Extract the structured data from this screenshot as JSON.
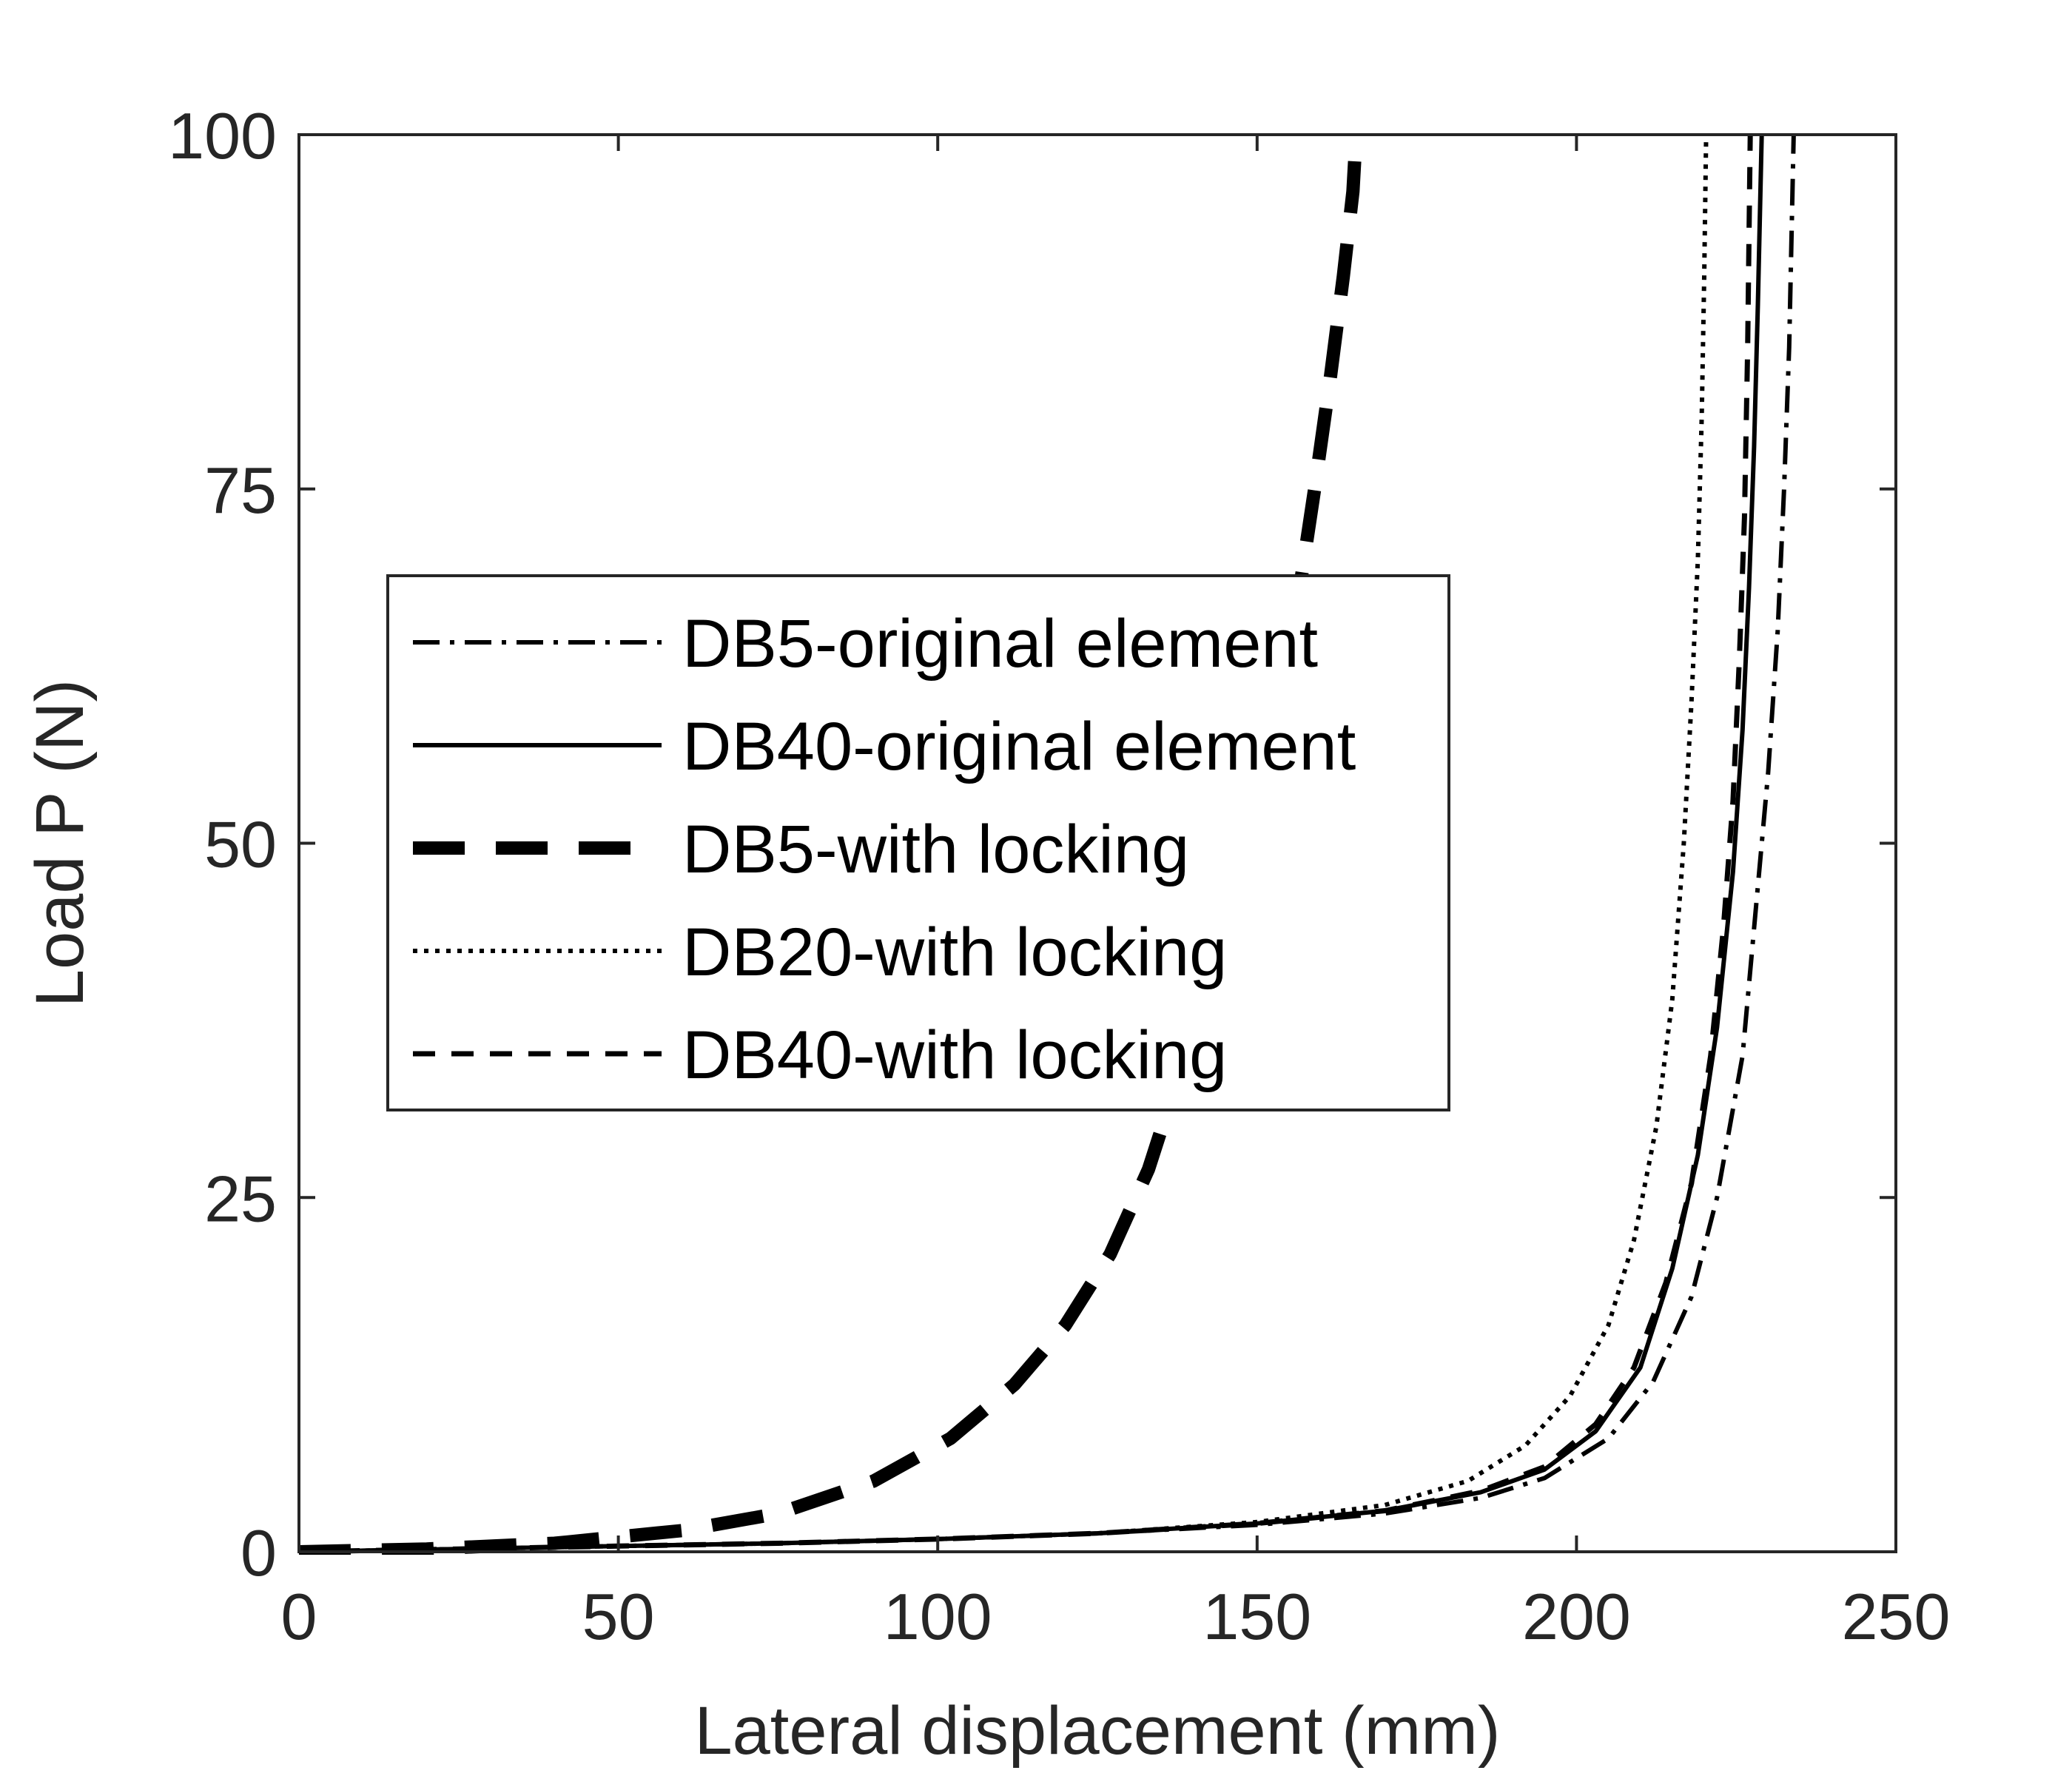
{
  "chart_data": {
    "type": "line",
    "title": "",
    "xlabel": "Lateral displacement (mm)",
    "ylabel": "Load P (N)",
    "xlim": [
      0,
      250
    ],
    "ylim": [
      0,
      100
    ],
    "xticks": [
      "0",
      "50",
      "100",
      "150",
      "200",
      "250"
    ],
    "yticks": [
      "0",
      "25",
      "50",
      "75",
      "100"
    ],
    "grid": false,
    "legend_position": "center-left",
    "series": [
      {
        "name": "DB5-original element",
        "style": "dashdot",
        "color": "#000000",
        "points": [
          [
            0,
            0
          ],
          [
            25,
            0.2
          ],
          [
            50,
            0.4
          ],
          [
            75,
            0.6
          ],
          [
            100,
            0.9
          ],
          [
            125,
            1.3
          ],
          [
            150,
            1.9
          ],
          [
            170,
            2.7
          ],
          [
            185,
            3.8
          ],
          [
            195,
            5.2
          ],
          [
            205,
            8
          ],
          [
            212,
            12
          ],
          [
            218,
            18
          ],
          [
            222,
            25
          ],
          [
            226,
            35
          ],
          [
            228,
            45
          ],
          [
            230,
            55
          ],
          [
            231.5,
            65
          ],
          [
            232.5,
            75
          ],
          [
            233.3,
            85
          ],
          [
            234,
            100
          ]
        ]
      },
      {
        "name": "DB40-original element",
        "style": "solid",
        "color": "#000000",
        "points": [
          [
            0,
            0
          ],
          [
            25,
            0.2
          ],
          [
            50,
            0.4
          ],
          [
            75,
            0.6
          ],
          [
            100,
            0.9
          ],
          [
            125,
            1.3
          ],
          [
            150,
            2
          ],
          [
            170,
            2.9
          ],
          [
            185,
            4.2
          ],
          [
            195,
            5.8
          ],
          [
            203,
            8.5
          ],
          [
            210,
            13
          ],
          [
            215,
            20
          ],
          [
            219,
            28
          ],
          [
            222,
            37
          ],
          [
            224.5,
            48
          ],
          [
            226,
            58
          ],
          [
            227,
            68
          ],
          [
            227.8,
            78
          ],
          [
            228.4,
            88
          ],
          [
            229,
            100
          ]
        ]
      },
      {
        "name": "DB5-with locking",
        "style": "longdash",
        "color": "#000000",
        "points": [
          [
            0,
            0
          ],
          [
            20,
            0.2
          ],
          [
            40,
            0.6
          ],
          [
            60,
            1.5
          ],
          [
            75,
            2.7
          ],
          [
            90,
            5
          ],
          [
            102,
            8
          ],
          [
            112,
            11.8
          ],
          [
            120,
            16
          ],
          [
            127,
            21
          ],
          [
            133,
            27
          ],
          [
            138,
            34
          ],
          [
            143,
            41
          ],
          [
            148,
            49
          ],
          [
            152,
            57
          ],
          [
            156,
            66
          ],
          [
            159,
            75
          ],
          [
            161.5,
            83
          ],
          [
            163.5,
            90
          ],
          [
            165,
            96
          ],
          [
            165.5,
            100
          ]
        ]
      },
      {
        "name": "DB20-with locking",
        "style": "dotted",
        "color": "#000000",
        "points": [
          [
            0,
            0
          ],
          [
            25,
            0.2
          ],
          [
            50,
            0.4
          ],
          [
            75,
            0.6
          ],
          [
            100,
            0.9
          ],
          [
            125,
            1.3
          ],
          [
            150,
            2.1
          ],
          [
            170,
            3.3
          ],
          [
            183,
            5
          ],
          [
            192,
            7.5
          ],
          [
            199,
            11
          ],
          [
            205,
            16
          ],
          [
            209,
            22
          ],
          [
            212.5,
            30
          ],
          [
            215,
            39
          ],
          [
            216.8,
            50
          ],
          [
            218,
            60
          ],
          [
            219,
            70
          ],
          [
            219.6,
            80
          ],
          [
            220,
            90
          ],
          [
            220.3,
            100
          ]
        ]
      },
      {
        "name": "DB40-with locking",
        "style": "dashed",
        "color": "#000000",
        "points": [
          [
            0,
            0
          ],
          [
            25,
            0.2
          ],
          [
            50,
            0.4
          ],
          [
            75,
            0.6
          ],
          [
            100,
            0.9
          ],
          [
            125,
            1.3
          ],
          [
            150,
            2
          ],
          [
            170,
            2.9
          ],
          [
            185,
            4.3
          ],
          [
            195,
            6
          ],
          [
            203,
            9
          ],
          [
            209,
            13
          ],
          [
            214,
            19
          ],
          [
            218,
            26
          ],
          [
            221,
            35
          ],
          [
            223,
            44
          ],
          [
            224.5,
            53
          ],
          [
            225.5,
            63
          ],
          [
            226.3,
            73
          ],
          [
            226.8,
            85
          ],
          [
            227.2,
            100
          ]
        ]
      }
    ]
  }
}
